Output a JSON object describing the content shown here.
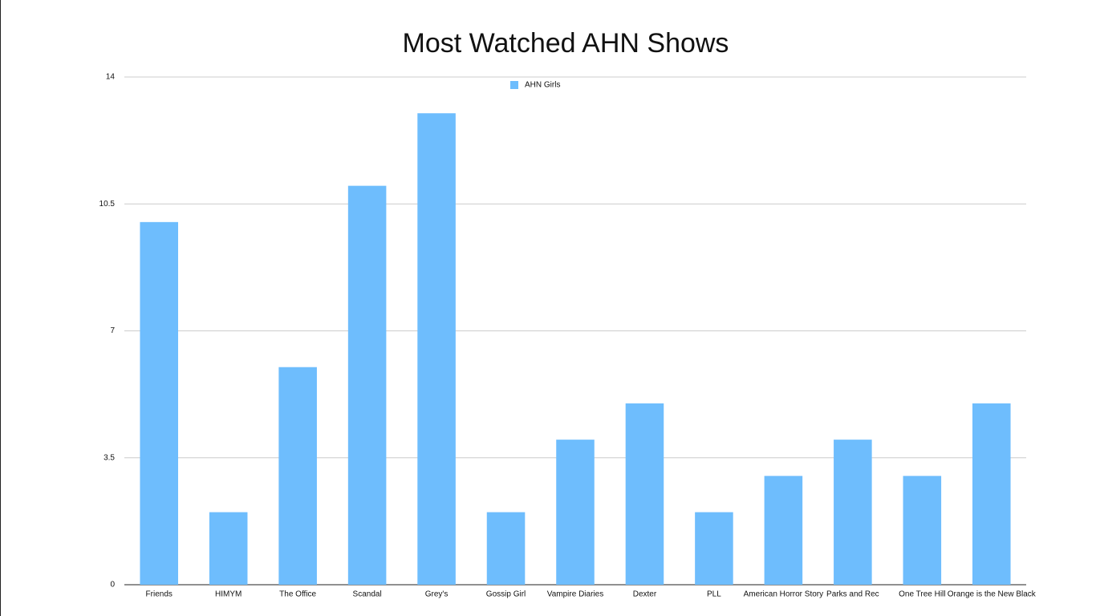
{
  "chart_data": {
    "type": "bar",
    "title": "Most Watched AHN Shows",
    "categories": [
      "Friends",
      "HIMYM",
      "The Office",
      "Scandal",
      "Grey's",
      "Gossip Girl",
      "Vampire Diaries",
      "Dexter",
      "PLL",
      "American Horror Story",
      "Parks and Rec",
      "One Tree Hill",
      "Orange is the New Black"
    ],
    "series": [
      {
        "name": "AHN Girls",
        "color": "#6ebdfd",
        "values": [
          10,
          2,
          6,
          11,
          13,
          2,
          4,
          5,
          2,
          3,
          4,
          3,
          5
        ]
      }
    ],
    "ylim": [
      0,
      14
    ],
    "yticks": [
      0,
      3.5,
      7,
      10.5,
      14
    ],
    "grid": true,
    "legend": "top"
  }
}
